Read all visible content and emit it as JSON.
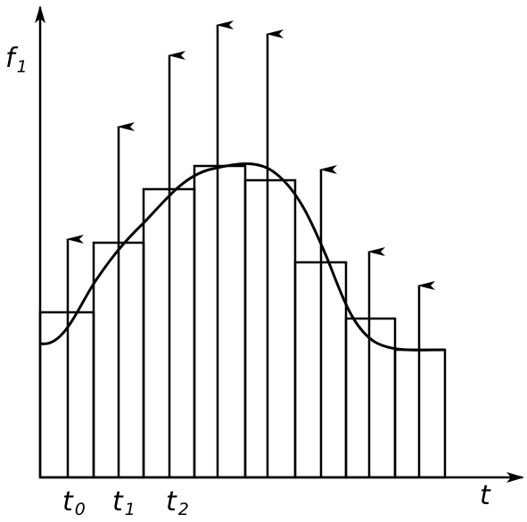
{
  "y_axis_label": {
    "base": "f",
    "subscript": "1"
  },
  "x_axis_label": "t",
  "ticks": [
    {
      "base": "t",
      "subscript": "0"
    },
    {
      "base": "t",
      "subscript": "1"
    },
    {
      "base": "t",
      "subscript": "2"
    }
  ]
}
